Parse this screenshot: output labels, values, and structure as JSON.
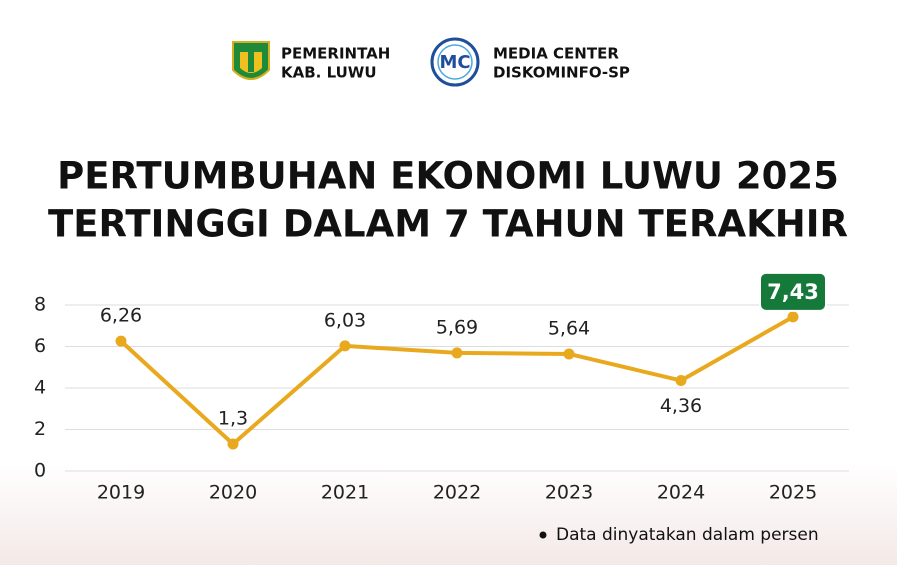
{
  "header": {
    "logos": [
      {
        "line1": "PEMERINTAH",
        "line2": "KAB. LUWU"
      },
      {
        "mark": "MC",
        "line1": "MEDIA CENTER",
        "line2": "DISKOMINFO-SP"
      }
    ]
  },
  "chart_data": {
    "type": "line",
    "title": [
      "PERTUMBUHAN EKONOMI LUWU 2025",
      "TERTINGGI DALAM 7 TAHUN TERAKHIR"
    ],
    "categories": [
      "2019",
      "2020",
      "2021",
      "2022",
      "2023",
      "2024",
      "2025"
    ],
    "values": [
      6.26,
      1.3,
      6.03,
      5.69,
      5.64,
      4.36,
      7.43
    ],
    "value_labels": [
      "6,26",
      "1,3",
      "6,03",
      "5,69",
      "5,64",
      "4,36",
      "7,43"
    ],
    "color": "#e9a91e",
    "ylim": [
      0,
      8
    ],
    "yticks": [
      0,
      2,
      4,
      6,
      8
    ],
    "grid": true,
    "note": "Data dinyatakan dalam persen"
  }
}
